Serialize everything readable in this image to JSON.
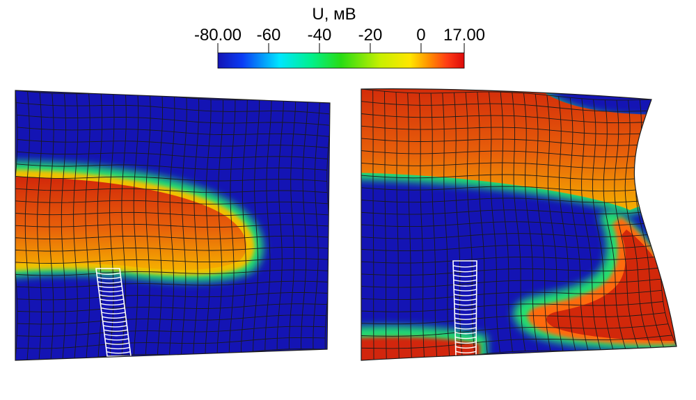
{
  "colorbar": {
    "title": "U, мВ",
    "min": -80,
    "max": 17,
    "ticks": [
      {
        "value": -80,
        "label": "-80.00"
      },
      {
        "value": -60,
        "label": "-60"
      },
      {
        "value": -40,
        "label": "-40"
      },
      {
        "value": -20,
        "label": "-20"
      },
      {
        "value": 0,
        "label": "0"
      },
      {
        "value": 17,
        "label": "17.00"
      }
    ],
    "colormap": [
      "#1414b4",
      "#0a3cf5",
      "#00e6ff",
      "#00f08c",
      "#28dc14",
      "#c8f000",
      "#ffe600",
      "#ff8c00",
      "#ff3c14",
      "#dc0a0a"
    ]
  },
  "panels": [
    {
      "name": "left-tissue-panel",
      "state": "single-excitation-wave"
    },
    {
      "name": "right-tissue-panel",
      "state": "spiral-wave"
    }
  ],
  "colors": {
    "resting": "#1414b4",
    "excited": "#d2280a",
    "mesh_line": "#1a1a1a",
    "stimulus_outline": "#ffffff"
  }
}
